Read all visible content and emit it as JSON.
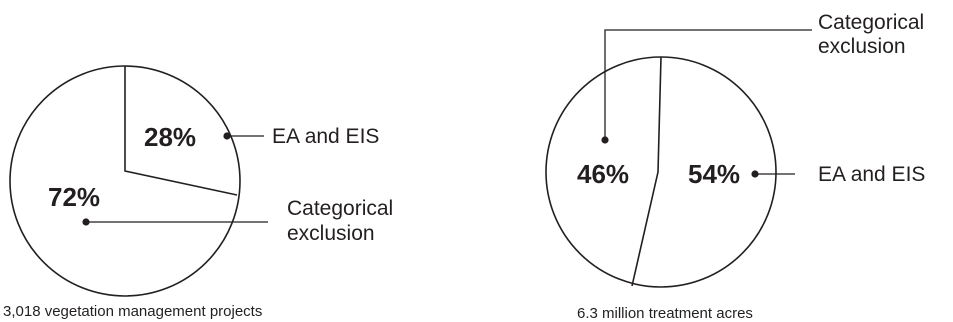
{
  "chart_data": [
    {
      "type": "pie",
      "caption": "3,018 vegetation management projects",
      "slices": [
        {
          "label_lines": [
            "EA and EIS"
          ],
          "value": 28,
          "value_label": "28%"
        },
        {
          "label_lines": [
            "Categorical",
            "exclusion"
          ],
          "value": 72,
          "value_label": "72%"
        }
      ],
      "colors": {
        "ink": "#231f20",
        "fill": "#ffffff"
      }
    },
    {
      "type": "pie",
      "caption": "6.3 million treatment acres",
      "slices": [
        {
          "label_lines": [
            "EA and EIS"
          ],
          "value": 54,
          "value_label": "54%"
        },
        {
          "label_lines": [
            "Categorical",
            "exclusion"
          ],
          "value": 46,
          "value_label": "46%"
        }
      ],
      "colors": {
        "ink": "#231f20",
        "fill": "#ffffff"
      }
    }
  ]
}
